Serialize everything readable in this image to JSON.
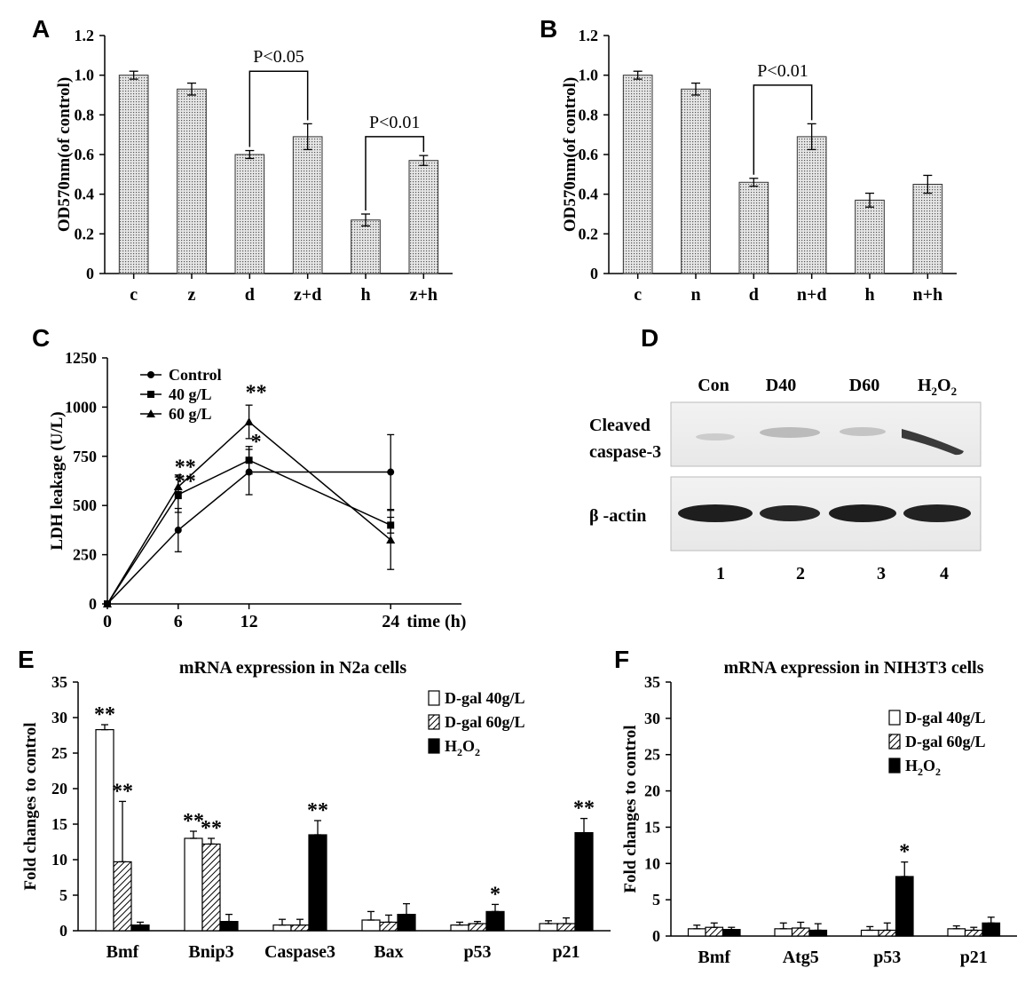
{
  "chart_data": [
    {
      "id": "A",
      "panel_label": "A",
      "type": "bar",
      "ylabel": "OD570nm(of control)",
      "ylim": [
        0,
        1.2
      ],
      "yticks": [
        "0",
        "0.2",
        "0.4",
        "0.6",
        "0.8",
        "1.0",
        "1.2"
      ],
      "categories": [
        "c",
        "z",
        "d",
        "z+d",
        "h",
        "z+h"
      ],
      "values": [
        1.0,
        0.93,
        0.6,
        0.69,
        0.27,
        0.57
      ],
      "errors": [
        0.02,
        0.03,
        0.02,
        0.065,
        0.03,
        0.025
      ],
      "annotations": [
        {
          "text": "P<0.05",
          "from": 2,
          "to": 3,
          "level": 1.02
        },
        {
          "text": "P<0.01",
          "from": 4,
          "to": 5,
          "level": 0.69
        }
      ]
    },
    {
      "id": "B",
      "panel_label": "B",
      "type": "bar",
      "ylabel": "OD570nm(of control)",
      "ylim": [
        0,
        1.2
      ],
      "yticks": [
        "0",
        "0.2",
        "0.4",
        "0.6",
        "0.8",
        "1.0",
        "1.2"
      ],
      "categories": [
        "c",
        "n",
        "d",
        "n+d",
        "h",
        "n+h"
      ],
      "values": [
        1.0,
        0.93,
        0.46,
        0.69,
        0.37,
        0.45
      ],
      "errors": [
        0.02,
        0.03,
        0.02,
        0.065,
        0.035,
        0.045
      ],
      "annotations": [
        {
          "text": "P<0.01",
          "from": 2,
          "to": 3,
          "level": 0.95
        }
      ]
    },
    {
      "id": "C",
      "panel_label": "C",
      "type": "line",
      "ylabel": "LDH leakage (U/L)",
      "ylim": [
        0,
        1250
      ],
      "yticks": [
        "0",
        "250",
        "500",
        "750",
        "1000",
        "1250"
      ],
      "x": [
        0,
        6,
        12,
        24
      ],
      "xticks": [
        "0",
        "6",
        "12",
        "24"
      ],
      "xlabel": "time (h)",
      "series": [
        {
          "name": "Control",
          "marker": "circle",
          "values": [
            0,
            375,
            670,
            670
          ],
          "errors": [
            0,
            110,
            115,
            190
          ]
        },
        {
          "name": "40 g/L",
          "marker": "square",
          "values": [
            0,
            555,
            730,
            400
          ],
          "errors": [
            0,
            90,
            70,
            40
          ]
        },
        {
          "name": "60 g/L",
          "marker": "triangle",
          "values": [
            0,
            595,
            925,
            325
          ],
          "errors": [
            0,
            60,
            85,
            150
          ]
        }
      ],
      "stars": [
        {
          "text": "**",
          "x": 6,
          "y": 660
        },
        {
          "text": "**",
          "x": 6,
          "y": 590
        },
        {
          "text": "**",
          "x": 12,
          "y": 1040
        },
        {
          "text": "*",
          "x": 12,
          "y": 790
        }
      ]
    },
    {
      "id": "E",
      "panel_label": "E",
      "type": "bar",
      "title": "mRNA expression in N2a cells",
      "ylabel": "Fold changes to control",
      "ylim": [
        0,
        35
      ],
      "yticks": [
        "0",
        "5",
        "10",
        "15",
        "20",
        "25",
        "30",
        "35"
      ],
      "categories": [
        "Bmf",
        "Bnip3",
        "Caspase3",
        "Bax",
        "p53",
        "p21"
      ],
      "series": [
        {
          "name": "D-gal 40g/L",
          "values": [
            28.3,
            13.0,
            0.8,
            1.5,
            0.8,
            1.0
          ],
          "errors": [
            0.7,
            1.0,
            0.8,
            1.2,
            0.4,
            0.4
          ]
        },
        {
          "name": "D-gal 60g/L",
          "values": [
            9.7,
            12.2,
            0.8,
            1.2,
            1.0,
            1.0
          ],
          "errors": [
            8.5,
            0.8,
            0.8,
            1.0,
            0.3,
            0.8
          ]
        },
        {
          "name": "H2O2",
          "values": [
            0.8,
            1.3,
            13.5,
            2.3,
            2.7,
            13.8
          ],
          "errors": [
            0.4,
            1.0,
            2.0,
            1.5,
            1.0,
            2.0
          ]
        }
      ],
      "stars": [
        "** ** -",
        "** ** -",
        "- - **",
        "- - -",
        "- - *",
        "- - **"
      ]
    },
    {
      "id": "F",
      "panel_label": "F",
      "type": "bar",
      "title": "mRNA expression in NIH3T3 cells",
      "ylabel": "Fold changes to control",
      "ylim": [
        0,
        35
      ],
      "yticks": [
        "0",
        "5",
        "10",
        "15",
        "20",
        "25",
        "30",
        "35"
      ],
      "categories": [
        "Bmf",
        "Atg5",
        "p53",
        "p21"
      ],
      "series": [
        {
          "name": "D-gal 40g/L",
          "values": [
            1.0,
            1.0,
            0.8,
            1.0
          ],
          "errors": [
            0.5,
            0.8,
            0.5,
            0.4
          ]
        },
        {
          "name": "D-gal 60g/L",
          "values": [
            1.2,
            1.1,
            0.8,
            0.8
          ],
          "errors": [
            0.6,
            0.8,
            1.0,
            0.4
          ]
        },
        {
          "name": "H2O2",
          "values": [
            0.9,
            0.8,
            8.2,
            1.8
          ],
          "errors": [
            0.3,
            0.9,
            2.0,
            0.8
          ]
        }
      ],
      "stars": [
        "- - -",
        "- - -",
        "- - *",
        "- - -"
      ]
    }
  ],
  "blot": {
    "panel_label": "D",
    "lanes": [
      "Con",
      "D40",
      "D60",
      "H2O2"
    ],
    "lane_h2o2_main": "H",
    "lane_h2o2_sub1": "2",
    "lane_h2o2_mid": "O",
    "lane_h2o2_sub2": "2",
    "row1_line1": "Cleaved",
    "row1_line2": "caspase-3",
    "row2": "β -actin",
    "lane_numbers": [
      "1",
      "2",
      "3",
      "4"
    ]
  },
  "legend_h2o2": {
    "main": "H",
    "sub1": "2",
    "mid": "O",
    "sub2": "2"
  }
}
